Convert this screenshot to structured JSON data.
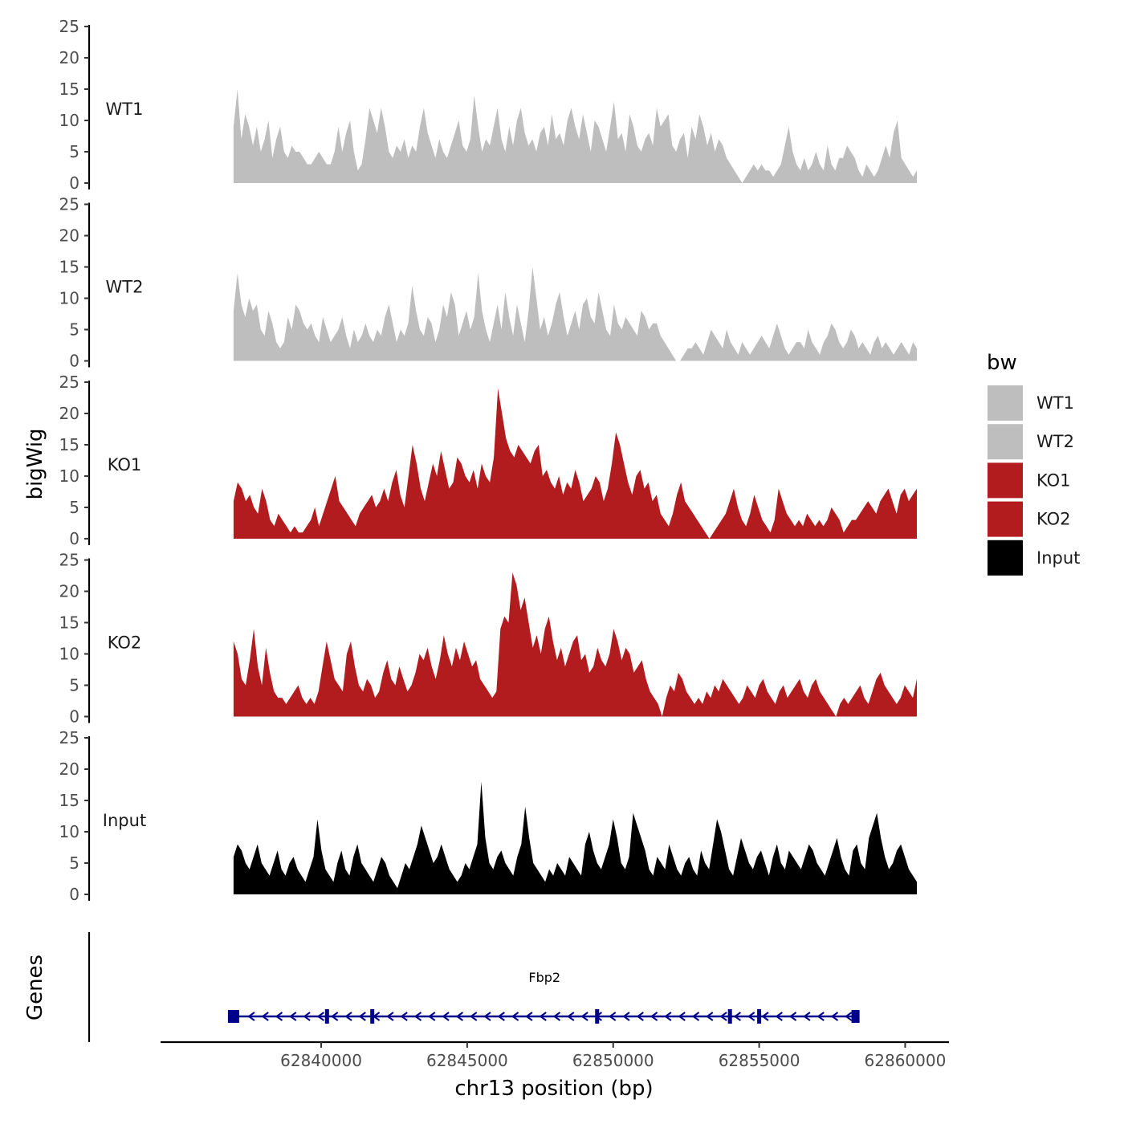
{
  "chart_data": {
    "type": "area",
    "ylabel": "bigWig",
    "xlabel": "chr13 position (bp)",
    "gene_track_label": "Genes",
    "ylim": [
      0,
      25
    ],
    "y_ticks": [
      "0",
      "5",
      "10",
      "15",
      "20",
      "25"
    ],
    "x_range": [
      62834500,
      62861500
    ],
    "x_ticks": [
      62840000,
      62845000,
      62850000,
      62855000,
      62860000
    ],
    "x_tick_labels": [
      "62840000",
      "62845000",
      "62850000",
      "62855000",
      "62860000"
    ],
    "legend": {
      "title": "bw",
      "position": "right",
      "entries": [
        {
          "label": "WT1",
          "color": "#bebebe"
        },
        {
          "label": "WT2",
          "color": "#bebebe"
        },
        {
          "label": "KO1",
          "color": "#b21c1f"
        },
        {
          "label": "KO2",
          "color": "#b21c1f"
        },
        {
          "label": "Input",
          "color": "#000000"
        }
      ]
    },
    "series": [
      {
        "name": "WT1",
        "color": "#bebebe",
        "x_start": 62837000,
        "x_end": 62860400,
        "values": [
          9,
          15,
          7,
          11,
          9,
          6,
          9,
          5,
          7,
          10,
          4,
          7,
          9,
          5,
          4,
          6,
          5,
          5,
          4,
          3,
          3,
          4,
          5,
          4,
          3,
          3,
          5,
          9,
          5,
          8,
          10,
          5,
          2,
          3,
          7,
          12,
          10,
          8,
          12,
          9,
          5,
          4,
          6,
          5,
          7,
          4,
          6,
          5,
          9,
          12,
          8,
          6,
          4,
          7,
          5,
          4,
          6,
          8,
          10,
          6,
          5,
          7,
          14,
          9,
          5,
          7,
          6,
          9,
          12,
          7,
          5,
          9,
          6,
          10,
          12,
          8,
          6,
          7,
          5,
          8,
          9,
          6,
          11,
          7,
          8,
          6,
          10,
          12,
          9,
          7,
          11,
          8,
          5,
          10,
          9,
          7,
          5,
          9,
          13,
          7,
          8,
          5,
          11,
          9,
          6,
          5,
          7,
          8,
          6,
          12,
          9,
          10,
          11,
          6,
          5,
          7,
          8,
          4,
          9,
          7,
          11,
          9,
          6,
          8,
          5,
          7,
          6,
          4,
          3,
          2,
          1,
          0,
          1,
          2,
          3,
          2,
          3,
          2,
          2,
          1,
          2,
          3,
          6,
          9,
          5,
          3,
          2,
          4,
          2,
          3,
          5,
          3,
          2,
          6,
          3,
          2,
          4,
          4,
          6,
          5,
          4,
          2,
          1,
          3,
          2,
          1,
          2,
          4,
          6,
          4,
          8,
          10,
          4,
          3,
          2,
          1,
          2
        ]
      },
      {
        "name": "WT2",
        "color": "#bebebe",
        "x_start": 62837000,
        "x_end": 62860400,
        "values": [
          8,
          14,
          9,
          7,
          10,
          8,
          9,
          5,
          4,
          8,
          6,
          3,
          2,
          3,
          7,
          5,
          9,
          8,
          6,
          5,
          6,
          4,
          3,
          7,
          5,
          3,
          4,
          5,
          7,
          4,
          2,
          5,
          3,
          4,
          6,
          4,
          3,
          5,
          4,
          7,
          9,
          6,
          3,
          5,
          4,
          6,
          12,
          8,
          5,
          4,
          7,
          6,
          3,
          5,
          9,
          7,
          11,
          9,
          4,
          6,
          8,
          5,
          7,
          14,
          8,
          5,
          3,
          6,
          9,
          5,
          11,
          7,
          4,
          9,
          6,
          3,
          8,
          15,
          10,
          5,
          7,
          4,
          6,
          9,
          11,
          7,
          4,
          6,
          8,
          5,
          9,
          10,
          7,
          6,
          11,
          8,
          5,
          4,
          9,
          6,
          5,
          7,
          6,
          5,
          4,
          8,
          7,
          5,
          6,
          6,
          4,
          3,
          2,
          1,
          0,
          0,
          1,
          2,
          2,
          3,
          2,
          1,
          3,
          5,
          4,
          3,
          2,
          5,
          3,
          2,
          1,
          3,
          2,
          1,
          2,
          3,
          4,
          3,
          2,
          4,
          6,
          4,
          2,
          1,
          2,
          3,
          3,
          2,
          5,
          3,
          2,
          1,
          3,
          4,
          6,
          5,
          3,
          2,
          3,
          5,
          4,
          2,
          3,
          2,
          1,
          3,
          4,
          2,
          3,
          2,
          1,
          2,
          3,
          2,
          1,
          3,
          2
        ]
      },
      {
        "name": "KO1",
        "color": "#b21c1f",
        "x_start": 62837000,
        "x_end": 62860400,
        "values": [
          6,
          9,
          8,
          6,
          7,
          5,
          4,
          8,
          6,
          3,
          2,
          4,
          3,
          2,
          1,
          2,
          1,
          1,
          2,
          3,
          5,
          2,
          4,
          6,
          8,
          10,
          6,
          5,
          4,
          3,
          2,
          4,
          5,
          6,
          7,
          5,
          6,
          8,
          6,
          9,
          11,
          7,
          5,
          10,
          15,
          12,
          8,
          6,
          9,
          12,
          10,
          14,
          11,
          8,
          9,
          13,
          12,
          10,
          9,
          11,
          8,
          12,
          10,
          9,
          13,
          24,
          20,
          16,
          14,
          13,
          15,
          14,
          13,
          12,
          14,
          15,
          10,
          11,
          9,
          8,
          10,
          7,
          9,
          8,
          11,
          9,
          6,
          7,
          8,
          10,
          9,
          6,
          8,
          12,
          17,
          15,
          12,
          9,
          7,
          10,
          11,
          8,
          9,
          6,
          7,
          4,
          3,
          2,
          4,
          7,
          9,
          6,
          5,
          4,
          3,
          2,
          1,
          0,
          1,
          2,
          3,
          4,
          6,
          8,
          5,
          3,
          2,
          4,
          7,
          5,
          3,
          2,
          1,
          3,
          8,
          6,
          4,
          3,
          2,
          3,
          2,
          4,
          3,
          2,
          3,
          2,
          3,
          5,
          4,
          3,
          1,
          2,
          3,
          3,
          4,
          5,
          6,
          5,
          4,
          6,
          7,
          8,
          6,
          4,
          7,
          8,
          6,
          7,
          8
        ]
      },
      {
        "name": "KO2",
        "color": "#b21c1f",
        "x_start": 62837000,
        "x_end": 62860400,
        "values": [
          12,
          10,
          6,
          5,
          9,
          14,
          8,
          5,
          11,
          7,
          4,
          3,
          3,
          2,
          3,
          4,
          5,
          3,
          2,
          3,
          2,
          4,
          8,
          12,
          9,
          6,
          5,
          4,
          10,
          12,
          8,
          5,
          4,
          6,
          5,
          3,
          4,
          7,
          9,
          6,
          5,
          8,
          6,
          4,
          5,
          7,
          10,
          9,
          11,
          8,
          6,
          9,
          13,
          10,
          8,
          11,
          9,
          12,
          10,
          8,
          9,
          6,
          5,
          4,
          3,
          4,
          14,
          16,
          15,
          23,
          21,
          17,
          19,
          15,
          11,
          13,
          10,
          14,
          16,
          12,
          9,
          11,
          8,
          10,
          12,
          13,
          9,
          10,
          7,
          8,
          11,
          9,
          8,
          10,
          14,
          12,
          9,
          11,
          10,
          7,
          8,
          9,
          6,
          4,
          3,
          2,
          0,
          3,
          5,
          4,
          7,
          6,
          4,
          3,
          2,
          3,
          2,
          4,
          3,
          5,
          4,
          6,
          5,
          4,
          3,
          2,
          3,
          5,
          4,
          3,
          5,
          6,
          4,
          3,
          2,
          4,
          5,
          3,
          4,
          5,
          6,
          4,
          3,
          5,
          6,
          4,
          3,
          2,
          1,
          0,
          2,
          3,
          2,
          3,
          4,
          5,
          3,
          2,
          4,
          6,
          7,
          5,
          4,
          3,
          2,
          3,
          5,
          4,
          3,
          6
        ]
      },
      {
        "name": "Input",
        "color": "#000000",
        "x_start": 62837000,
        "x_end": 62860400,
        "values": [
          6,
          8,
          7,
          5,
          4,
          6,
          8,
          5,
          4,
          3,
          5,
          7,
          4,
          3,
          5,
          6,
          4,
          3,
          2,
          4,
          6,
          12,
          7,
          4,
          3,
          2,
          5,
          7,
          4,
          3,
          6,
          8,
          5,
          4,
          3,
          2,
          4,
          6,
          5,
          3,
          2,
          1,
          3,
          5,
          4,
          6,
          8,
          11,
          9,
          7,
          5,
          6,
          8,
          6,
          4,
          3,
          2,
          3,
          5,
          4,
          6,
          8,
          18,
          9,
          5,
          4,
          6,
          7,
          5,
          4,
          3,
          6,
          8,
          14,
          9,
          5,
          4,
          3,
          2,
          4,
          3,
          5,
          4,
          3,
          6,
          5,
          4,
          3,
          8,
          10,
          7,
          5,
          4,
          6,
          8,
          12,
          9,
          5,
          4,
          6,
          13,
          11,
          9,
          7,
          4,
          3,
          6,
          5,
          4,
          8,
          6,
          4,
          3,
          5,
          6,
          4,
          3,
          7,
          5,
          4,
          8,
          12,
          10,
          7,
          4,
          3,
          6,
          9,
          7,
          5,
          4,
          6,
          7,
          5,
          3,
          6,
          8,
          5,
          4,
          7,
          6,
          5,
          4,
          6,
          8,
          7,
          5,
          4,
          3,
          5,
          7,
          9,
          6,
          4,
          3,
          7,
          8,
          5,
          4,
          9,
          11,
          13,
          9,
          6,
          4,
          5,
          7,
          8,
          6,
          4,
          3,
          2
        ]
      }
    ],
    "gene_track": {
      "gene": "Fbp2",
      "color": "#00008b",
      "start": 62837000,
      "end": 62858300,
      "strand": "-",
      "exons": [
        62837000,
        62840200,
        62841750,
        62849450,
        62854000,
        62855000,
        62858300
      ]
    }
  }
}
